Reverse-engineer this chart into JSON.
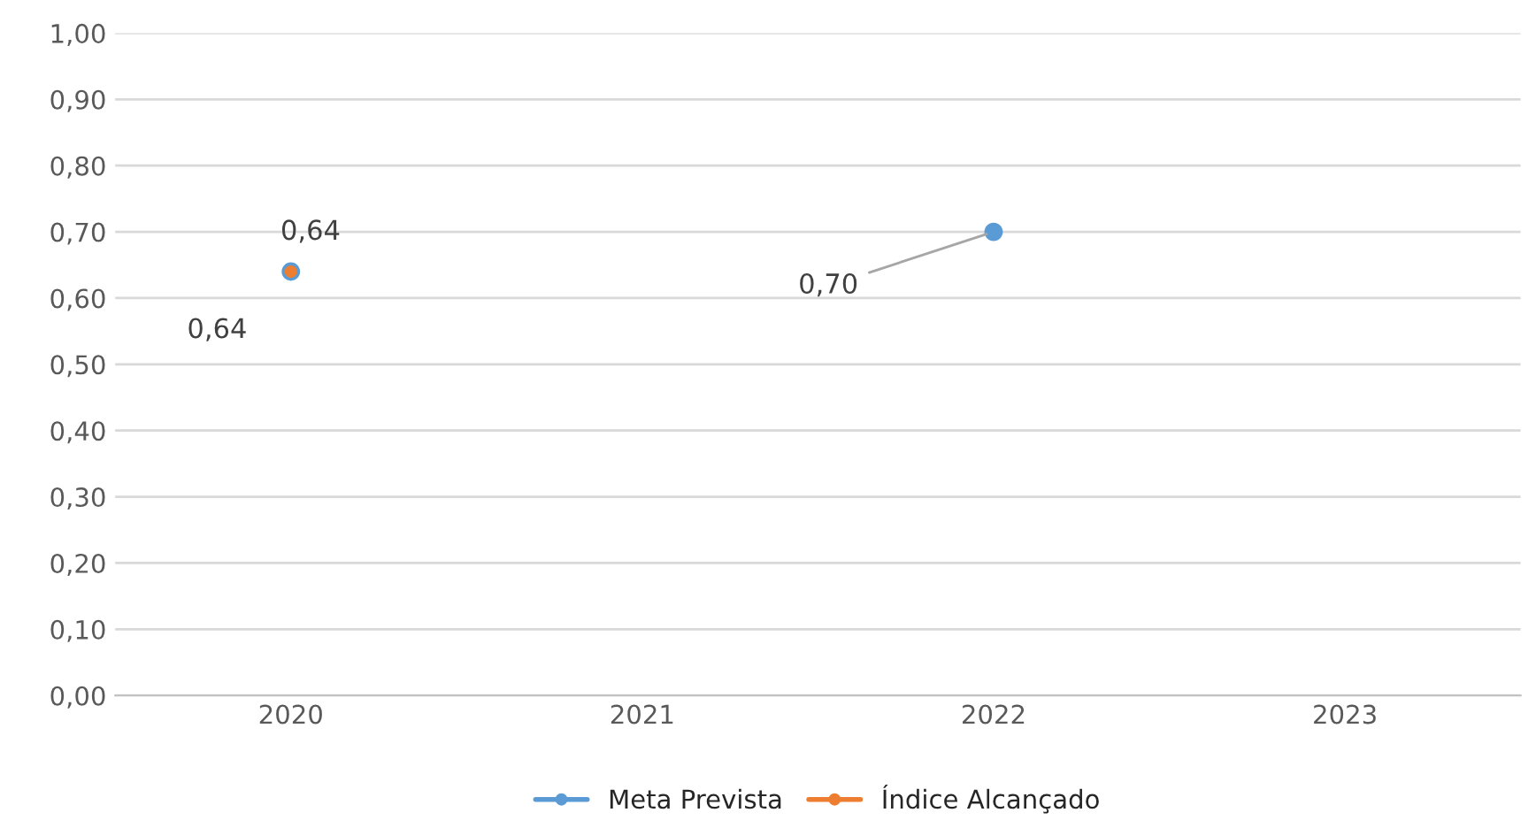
{
  "chart_data": {
    "type": "scatter",
    "categories": [
      "2020",
      "2021",
      "2022",
      "2023"
    ],
    "series": [
      {
        "name": "Meta Prevista",
        "color": "#5b9bd5",
        "values": [
          0.64,
          null,
          0.7,
          null
        ],
        "value_labels": [
          "0,64",
          null,
          "0,70",
          null
        ]
      },
      {
        "name": "Índice Alcançado",
        "color": "#ed7d31",
        "values": [
          0.64,
          null,
          null,
          null
        ],
        "value_labels": [
          "0,64",
          null,
          null,
          null
        ]
      }
    ],
    "ylim": [
      0,
      1
    ],
    "yticks": [
      {
        "value": 0,
        "label": "0,00"
      },
      {
        "value": 0.1,
        "label": "0,10"
      },
      {
        "value": 0.2,
        "label": "0,20"
      },
      {
        "value": 0.3,
        "label": "0,30"
      },
      {
        "value": 0.4,
        "label": "0,40"
      },
      {
        "value": 0.5,
        "label": "0,50"
      },
      {
        "value": 0.6,
        "label": "0,60"
      },
      {
        "value": 0.7,
        "label": "0,70"
      },
      {
        "value": 0.8,
        "label": "0,80"
      },
      {
        "value": 0.9,
        "label": "0,90"
      },
      {
        "value": 1.0,
        "label": "1,00"
      }
    ],
    "grid": "y",
    "legend": "bottom",
    "marker": "circle",
    "line_style": "solid"
  }
}
